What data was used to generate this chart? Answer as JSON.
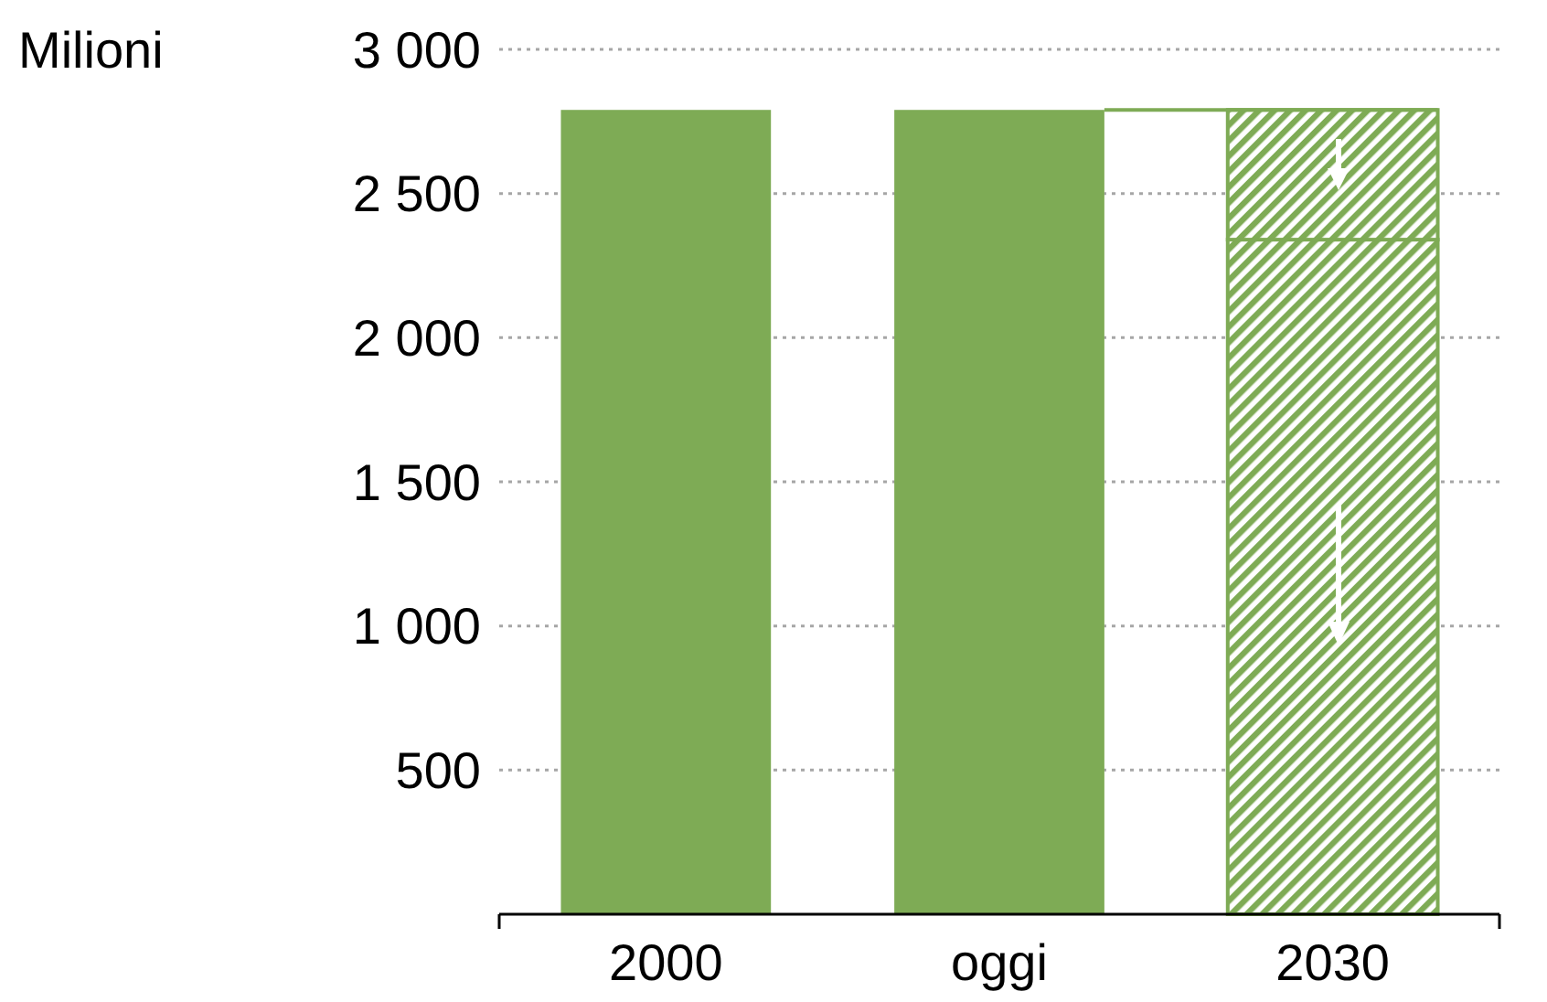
{
  "chart_data": {
    "type": "bar",
    "ylabel": "Milioni",
    "categories": [
      "2000",
      "oggi",
      "2030"
    ],
    "stacked": true,
    "series": [
      {
        "color": "#7eab55",
        "values": [
          2790,
          2790,
          null
        ]
      },
      {
        "color": "#7eab55",
        "values": [
          null,
          null,
          2340
        ]
      },
      {
        "color": "#7eab55",
        "values": [
          null,
          null,
          450
        ]
      }
    ],
    "ylim": [
      0,
      3000
    ],
    "yticks": [
      {
        "value": 0,
        "label": null
      },
      {
        "value": 500,
        "label": "500"
      },
      {
        "value": 1000,
        "label": "1 000"
      },
      {
        "value": 1500,
        "label": "1 500"
      },
      {
        "value": 2000,
        "label": "2 000"
      },
      {
        "value": 2500,
        "label": "2 500"
      },
      {
        "value": 3000,
        "label": "3 000"
      }
    ],
    "grid": "y",
    "ref_lines": [
      {
        "axis": "y",
        "value": 2790,
        "color": "#7eab55"
      }
    ]
  }
}
